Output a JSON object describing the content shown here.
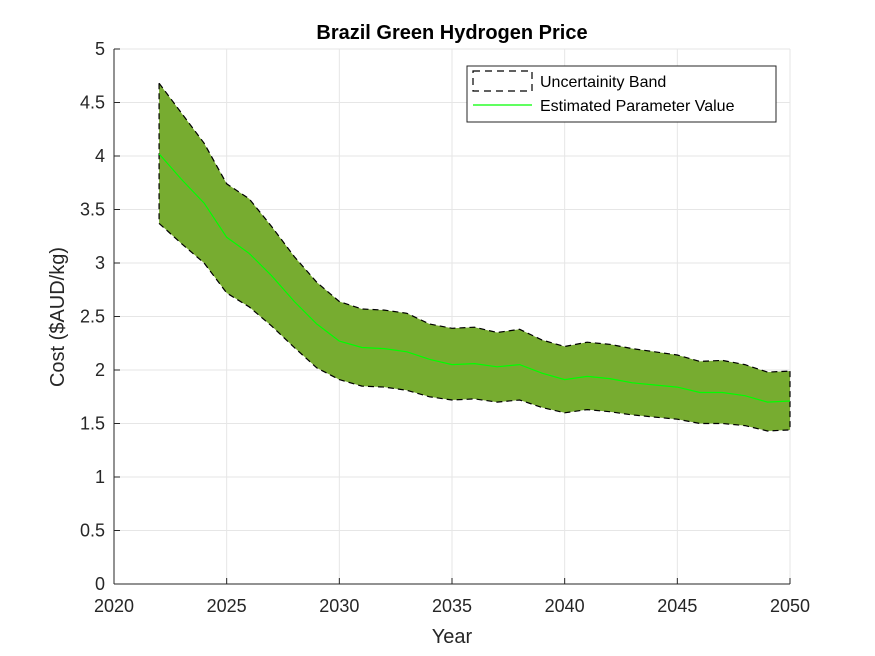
{
  "chart_data": {
    "type": "area",
    "title": "Brazil Green Hydrogen Price",
    "xlabel": "Year",
    "ylabel": "Cost ($AUD/kg)",
    "xlim": [
      2020,
      2050
    ],
    "ylim": [
      0,
      5
    ],
    "xticks": [
      "2020",
      "2025",
      "2030",
      "2035",
      "2040",
      "2045",
      "2050"
    ],
    "yticks": [
      "0",
      "0.5",
      "1",
      "1.5",
      "2",
      "2.5",
      "3",
      "3.5",
      "4",
      "4.5",
      "5"
    ],
    "grid": true,
    "legend_position": "top-right",
    "x": [
      2022,
      2023,
      2024,
      2025,
      2026,
      2027,
      2028,
      2029,
      2030,
      2031,
      2032,
      2033,
      2034,
      2035,
      2036,
      2037,
      2038,
      2039,
      2040,
      2041,
      2042,
      2043,
      2044,
      2045,
      2046,
      2047,
      2048,
      2049,
      2050
    ],
    "series": [
      {
        "name": "Uncertainity Band",
        "kind": "band",
        "upper": [
          4.68,
          4.4,
          4.12,
          3.74,
          3.6,
          3.34,
          3.06,
          2.82,
          2.64,
          2.57,
          2.56,
          2.53,
          2.43,
          2.39,
          2.4,
          2.35,
          2.38,
          2.28,
          2.22,
          2.26,
          2.24,
          2.2,
          2.17,
          2.14,
          2.08,
          2.09,
          2.05,
          1.98,
          1.99
        ],
        "lower": [
          3.37,
          3.18,
          3.0,
          2.72,
          2.59,
          2.41,
          2.21,
          2.02,
          1.91,
          1.85,
          1.84,
          1.81,
          1.75,
          1.72,
          1.73,
          1.7,
          1.72,
          1.65,
          1.6,
          1.63,
          1.61,
          1.58,
          1.56,
          1.54,
          1.5,
          1.5,
          1.48,
          1.43,
          1.44
        ]
      },
      {
        "name": "Estimated Parameter Value",
        "kind": "line",
        "values": [
          4.02,
          3.78,
          3.56,
          3.24,
          3.09,
          2.88,
          2.64,
          2.43,
          2.27,
          2.21,
          2.2,
          2.17,
          2.1,
          2.05,
          2.06,
          2.03,
          2.05,
          1.97,
          1.91,
          1.94,
          1.92,
          1.88,
          1.86,
          1.84,
          1.79,
          1.79,
          1.76,
          1.7,
          1.71
        ]
      }
    ],
    "colors": {
      "band_fill": "#77AC30",
      "band_edge": "#000000",
      "line": "#00FF00",
      "grid": "#e6e6e6",
      "axis": "#262626"
    }
  }
}
